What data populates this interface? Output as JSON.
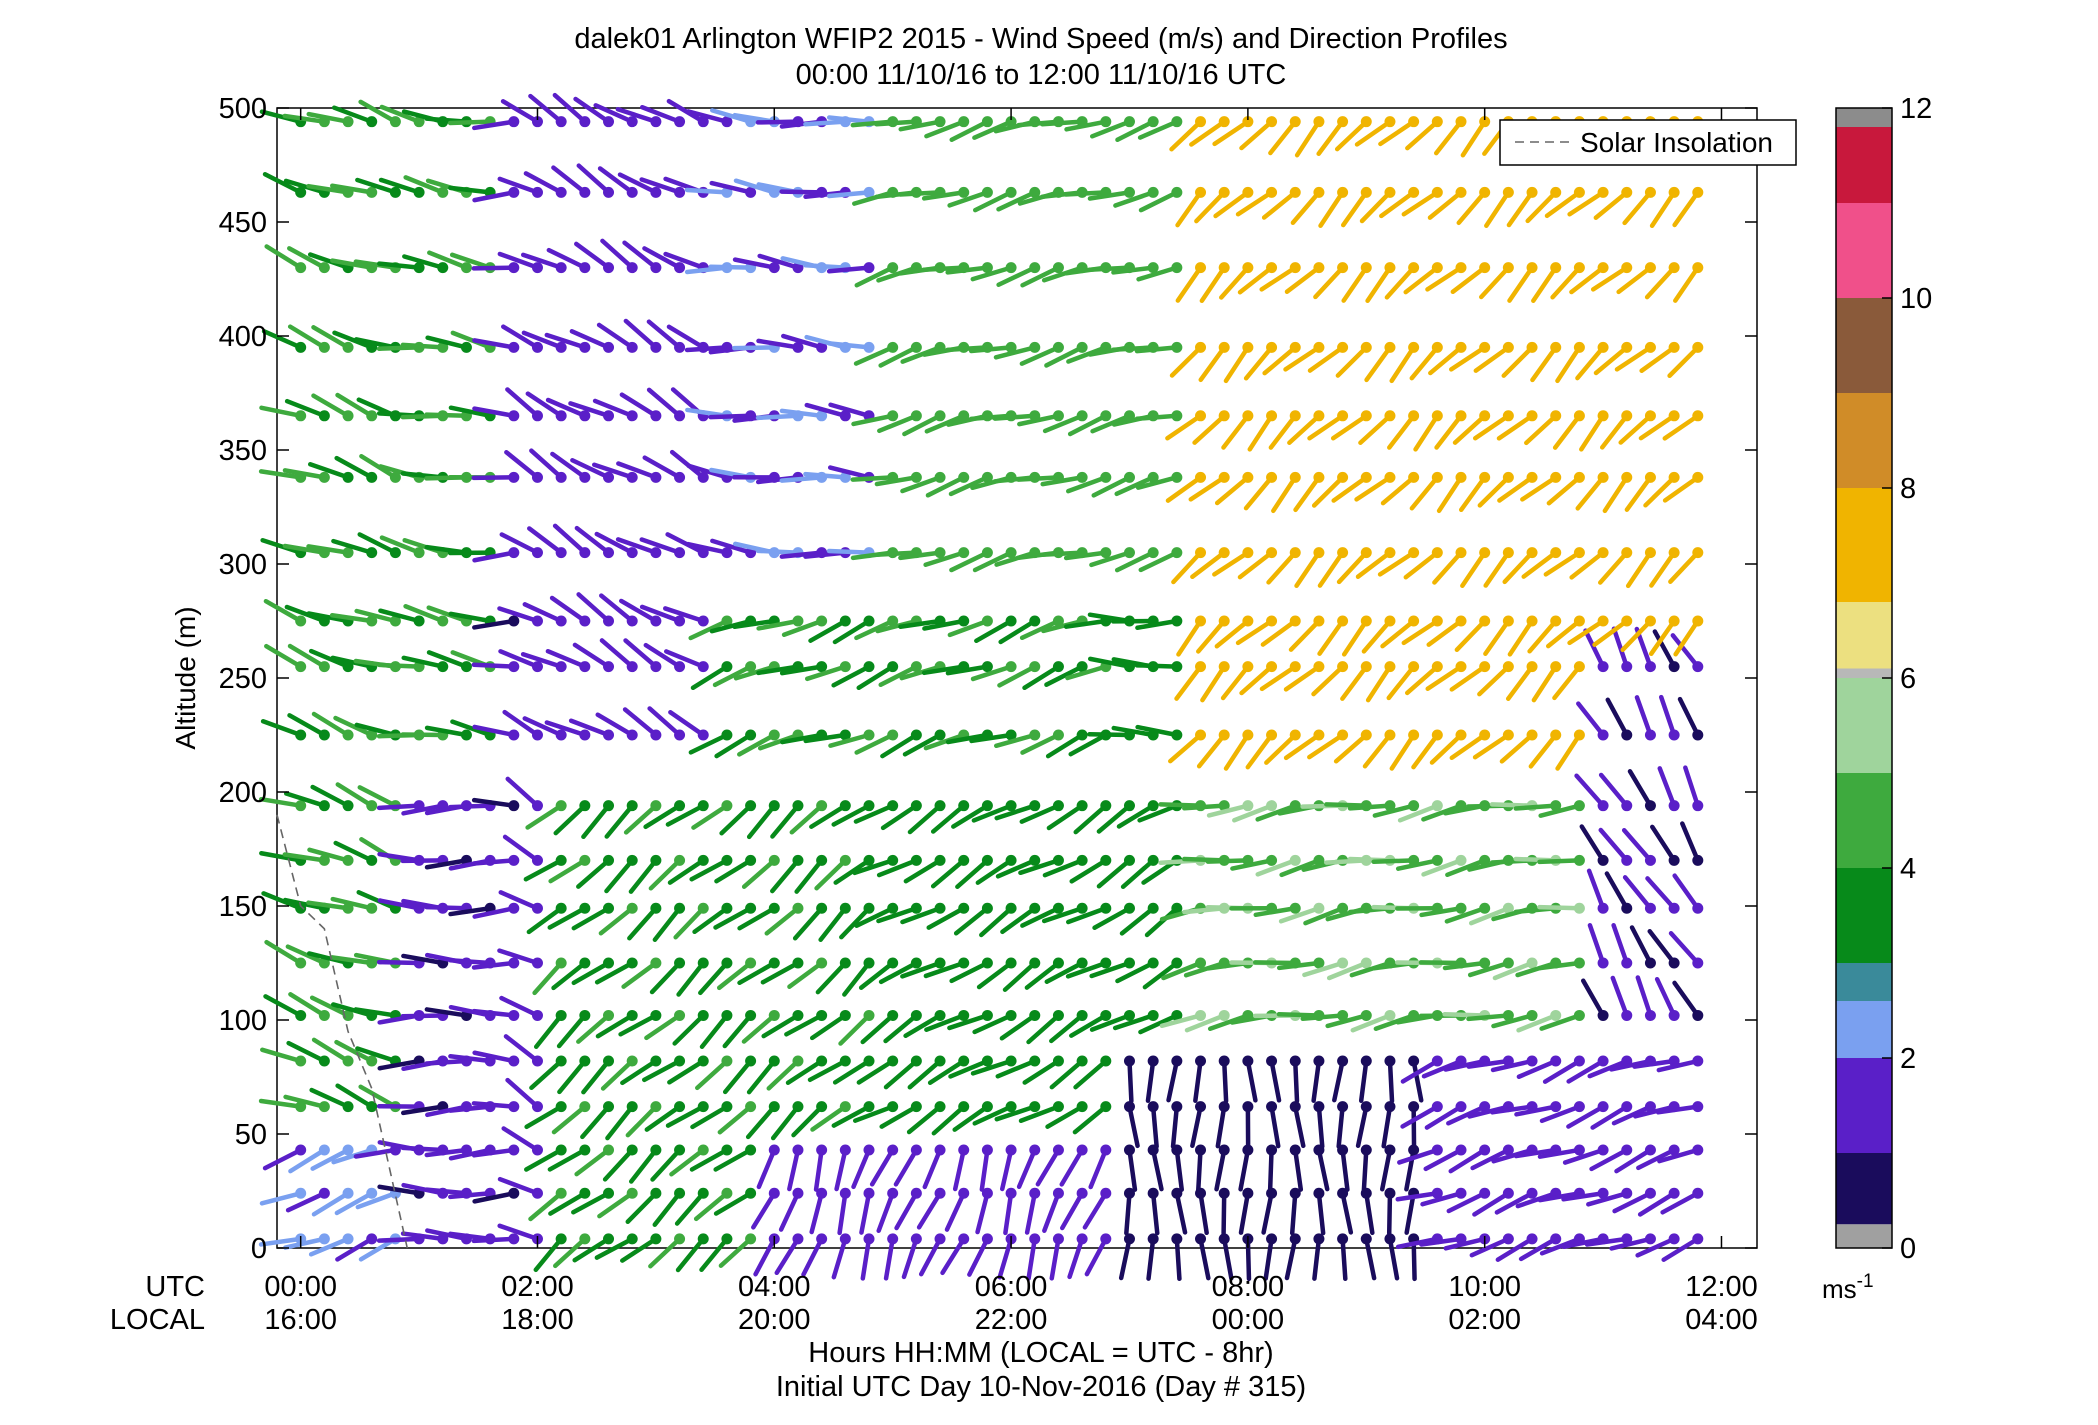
{
  "chart_data": {
    "type": "wind_barb_profile",
    "title": "dalek01 Arlington WFIP2 2015 - Wind Speed (m/s) and Direction Profiles",
    "subtitle": "00:00 11/10/16 to 12:00 11/10/16  UTC",
    "ylabel": "Altitude (m)",
    "xlabel": "Hours HH:MM  (LOCAL = UTC - 8hr)",
    "xlabel2": "Initial UTC Day 10-Nov-2016 (Day # 315)",
    "x_row_labels": [
      "UTC",
      "LOCAL"
    ],
    "ylim": [
      0,
      500
    ],
    "yticks": [
      0,
      50,
      100,
      150,
      200,
      250,
      300,
      350,
      400,
      450,
      500
    ],
    "xlim_hours": [
      -0.2,
      12.3
    ],
    "utc_ticks": [
      {
        "hour": 0,
        "utc": "00:00",
        "local": "16:00"
      },
      {
        "hour": 2,
        "utc": "02:00",
        "local": "18:00"
      },
      {
        "hour": 4,
        "utc": "04:00",
        "local": "20:00"
      },
      {
        "hour": 6,
        "utc": "06:00",
        "local": "22:00"
      },
      {
        "hour": 8,
        "utc": "08:00",
        "local": "00:00"
      },
      {
        "hour": 10,
        "utc": "10:00",
        "local": "02:00"
      },
      {
        "hour": 12,
        "utc": "12:00",
        "local": "04:00"
      }
    ],
    "altitudes_m": [
      4,
      24,
      43,
      62,
      82,
      102,
      125,
      149,
      170,
      194,
      225,
      255,
      275,
      305,
      338,
      365,
      395,
      430,
      463,
      494
    ],
    "time_step_hours": 0.2,
    "time_count": 60,
    "colorbar": {
      "min": 0,
      "max": 12,
      "ticks": [
        0,
        2,
        4,
        6,
        8,
        10,
        12
      ],
      "unit": "ms-1",
      "bands": [
        {
          "from": 0,
          "to": 0.25,
          "color": "#a0a0a0"
        },
        {
          "from": 0.25,
          "to": 1,
          "color": "#1a0c5c"
        },
        {
          "from": 1,
          "to": 2,
          "color": "#5a1fc8"
        },
        {
          "from": 2,
          "to": 2.6,
          "color": "#7aa0f0"
        },
        {
          "from": 2.6,
          "to": 3,
          "color": "#3a8a9a"
        },
        {
          "from": 3,
          "to": 4,
          "color": "#078a1a"
        },
        {
          "from": 4,
          "to": 5,
          "color": "#3eaa3e"
        },
        {
          "from": 5,
          "to": 6,
          "color": "#9fd49c"
        },
        {
          "from": 6,
          "to": 6.1,
          "color": "#b8b8b8"
        },
        {
          "from": 6.1,
          "to": 6.8,
          "color": "#ece080"
        },
        {
          "from": 6.8,
          "to": 8,
          "color": "#f0b400"
        },
        {
          "from": 8,
          "to": 9,
          "color": "#d08c28"
        },
        {
          "from": 9,
          "to": 10,
          "color": "#8a5a3a"
        },
        {
          "from": 10,
          "to": 11,
          "color": "#f0508a"
        },
        {
          "from": 11,
          "to": 11.8,
          "color": "#c8183c"
        },
        {
          "from": 11.8,
          "to": 12,
          "color": "#8c8c8c"
        }
      ]
    },
    "regimes": [
      {
        "t_from": 0.0,
        "t_to": 1.0,
        "z_from": 60,
        "z_to": 520,
        "speed": 4.0,
        "direction_deg": 290
      },
      {
        "t_from": 0.0,
        "t_to": 1.0,
        "z_from": 0,
        "z_to": 60,
        "speed": 2.2,
        "direction_deg": 250
      },
      {
        "t_from": 1.0,
        "t_to": 2.1,
        "z_from": 0,
        "z_to": 520,
        "speed": 1.3,
        "direction_deg": 270
      },
      {
        "t_from": 1.0,
        "t_to": 1.8,
        "z_from": 210,
        "z_to": 520,
        "speed": 4.0,
        "direction_deg": 280
      },
      {
        "t_from": 2.0,
        "t_to": 3.5,
        "z_from": 0,
        "z_to": 520,
        "speed": 1.5,
        "direction_deg": 300
      },
      {
        "t_from": 2.2,
        "t_to": 5.0,
        "z_from": 0,
        "z_to": 200,
        "speed": 3.8,
        "direction_deg": 230
      },
      {
        "t_from": 3.5,
        "t_to": 5.0,
        "z_from": 300,
        "z_to": 520,
        "speed": 2.0,
        "direction_deg": 275
      },
      {
        "t_from": 3.5,
        "t_to": 7.0,
        "z_from": 200,
        "z_to": 300,
        "speed": 3.9,
        "direction_deg": 250
      },
      {
        "t_from": 4.0,
        "t_to": 7.5,
        "z_from": 0,
        "z_to": 60,
        "speed": 1.5,
        "direction_deg": 200
      },
      {
        "t_from": 5.0,
        "t_to": 7.5,
        "z_from": 60,
        "z_to": 200,
        "speed": 3.6,
        "direction_deg": 240
      },
      {
        "t_from": 5.0,
        "t_to": 8.0,
        "z_from": 300,
        "z_to": 520,
        "speed": 4.6,
        "direction_deg": 255
      },
      {
        "t_from": 7.0,
        "t_to": 9.5,
        "z_from": 0,
        "z_to": 90,
        "speed": 0.6,
        "direction_deg": 180
      },
      {
        "t_from": 7.5,
        "t_to": 11.0,
        "z_from": 90,
        "z_to": 200,
        "speed": 4.8,
        "direction_deg": 260
      },
      {
        "t_from": 7.5,
        "t_to": 12.3,
        "z_from": 200,
        "z_to": 520,
        "speed": 7.5,
        "direction_deg": 225
      },
      {
        "t_from": 9.5,
        "t_to": 12.3,
        "z_from": 0,
        "z_to": 90,
        "speed": 1.6,
        "direction_deg": 250
      },
      {
        "t_from": 11.0,
        "t_to": 12.3,
        "z_from": 90,
        "z_to": 260,
        "speed": 1.2,
        "direction_deg": 330
      }
    ],
    "solar_insolation": {
      "label": "Solar Insolation",
      "line_style": "dashed",
      "points": [
        [
          -0.2,
          190
        ],
        [
          0.0,
          150
        ],
        [
          0.2,
          140
        ],
        [
          0.4,
          95
        ],
        [
          0.6,
          70
        ],
        [
          0.9,
          0
        ]
      ]
    },
    "legend": {
      "placement": "top-right",
      "entries": [
        "Solar Insolation"
      ]
    },
    "grid": false
  }
}
